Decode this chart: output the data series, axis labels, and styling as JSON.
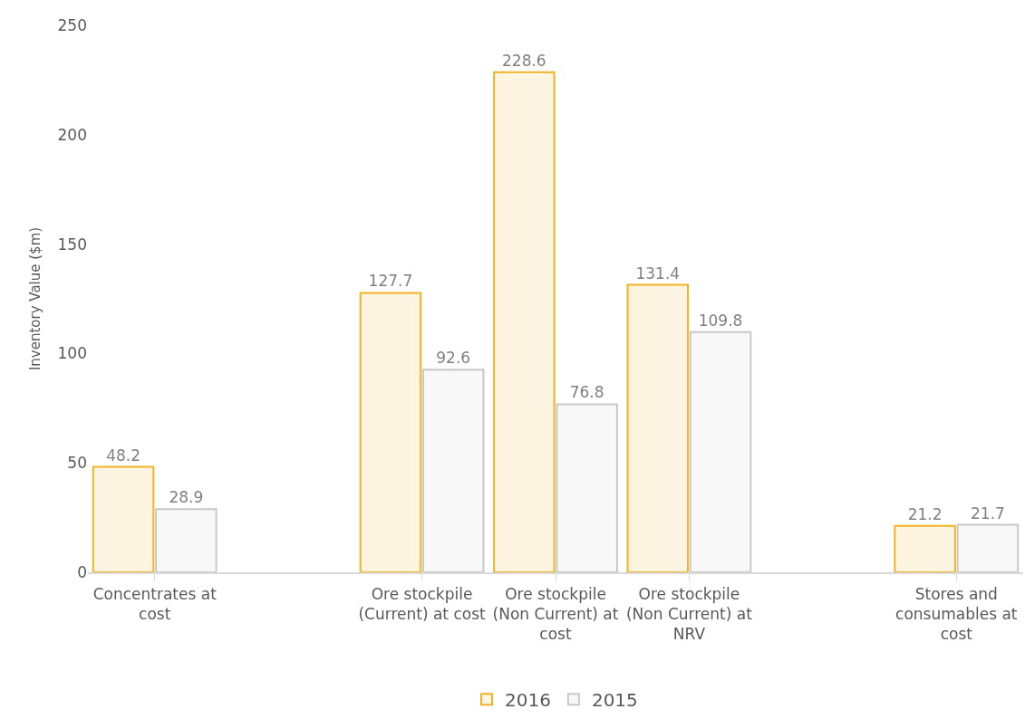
{
  "chart_data": {
    "type": "bar",
    "ylabel": "Inventory Value ($m)",
    "categories": [
      "Concentrates at cost",
      null,
      "Ore stockpile (Current) at cost",
      "Ore stockpile (Non Current) at cost",
      "Ore stockpile (Non Current) at NRV",
      null,
      "Stores and consumables at cost"
    ],
    "series": [
      {
        "name": "2016",
        "color": "#f0b323",
        "values": [
          48.2,
          null,
          127.7,
          228.6,
          131.4,
          null,
          21.2
        ]
      },
      {
        "name": "2015",
        "color": "#c8c8c8",
        "values": [
          28.9,
          null,
          92.6,
          76.8,
          109.8,
          null,
          21.7
        ]
      }
    ],
    "ylim": [
      0,
      250
    ],
    "yticks": [
      0,
      50,
      100,
      150,
      200,
      250
    ],
    "data_labels": true,
    "legend": "bottom"
  }
}
